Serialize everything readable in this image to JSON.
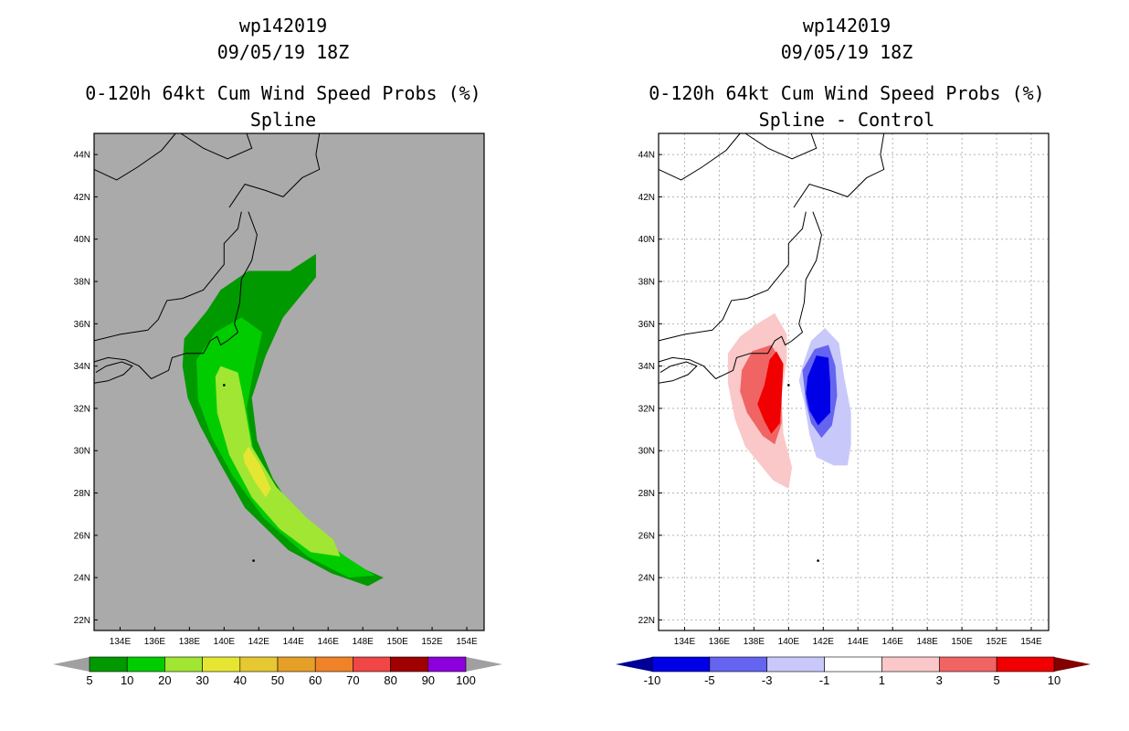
{
  "chart_data": [
    {
      "type": "heatmap",
      "title_lines": [
        "wp142019",
        "09/05/19 18Z",
        "0-120h 64kt Cum Wind Speed Probs (%)",
        "Spline"
      ],
      "xlabel": "",
      "ylabel": "",
      "xlim": [
        132.5,
        155
      ],
      "ylim": [
        21.5,
        45
      ],
      "x_ticks": [
        "134E",
        "136E",
        "138E",
        "140E",
        "142E",
        "144E",
        "146E",
        "148E",
        "150E",
        "152E",
        "154E"
      ],
      "y_ticks": [
        "22N",
        "24N",
        "26N",
        "28N",
        "30N",
        "32N",
        "34N",
        "36N",
        "38N",
        "40N",
        "42N",
        "44N"
      ],
      "grid": false,
      "background": "#aaaaaa",
      "colorbar": {
        "labels": [
          "5",
          "10",
          "20",
          "30",
          "40",
          "50",
          "60",
          "70",
          "80",
          "90",
          "100"
        ],
        "colors": [
          "#009900",
          "#00cc00",
          "#a0e632",
          "#e6e632",
          "#e6c832",
          "#e6a028",
          "#f08228",
          "#f04646",
          "#a00000",
          "#8c00dc"
        ],
        "below": "#a0a0a0",
        "above": "#a0a0a0"
      },
      "contours": [
        {
          "level": "5-10",
          "color": "#009900",
          "lonlat": [
            [
              137.6,
              34
            ],
            [
              137.7,
              35.3
            ],
            [
              139,
              36.6
            ],
            [
              139.8,
              37.6
            ],
            [
              141.4,
              38.5
            ],
            [
              143.8,
              38.5
            ],
            [
              145.3,
              39.3
            ],
            [
              145.3,
              38.2
            ],
            [
              144.8,
              37.7
            ],
            [
              143.4,
              36.3
            ],
            [
              142.4,
              34.5
            ],
            [
              141.6,
              32.5
            ],
            [
              141.9,
              30.5
            ],
            [
              142.8,
              28.7
            ],
            [
              144.3,
              26.8
            ],
            [
              146.4,
              25.3
            ],
            [
              148.1,
              24.4
            ],
            [
              149.2,
              24
            ],
            [
              148.3,
              23.6
            ],
            [
              146.2,
              24.2
            ],
            [
              143.7,
              25.3
            ],
            [
              141.2,
              27.3
            ],
            [
              139.7,
              29.5
            ],
            [
              138.6,
              31.2
            ],
            [
              137.9,
              32.5
            ]
          ]
        },
        {
          "level": "10-20",
          "color": "#00cc00",
          "lonlat": [
            [
              138.4,
              34.3
            ],
            [
              139.5,
              35.6
            ],
            [
              141,
              36.3
            ],
            [
              142.2,
              35.6
            ],
            [
              141.7,
              33.8
            ],
            [
              141.3,
              32
            ],
            [
              141.7,
              30
            ],
            [
              143,
              28
            ],
            [
              145,
              26.2
            ],
            [
              147,
              25
            ],
            [
              148.7,
              24.1
            ],
            [
              147.2,
              24
            ],
            [
              144.8,
              25
            ],
            [
              142.3,
              26.8
            ],
            [
              140.5,
              28.8
            ],
            [
              139.3,
              30.6
            ],
            [
              138.5,
              32.4
            ]
          ]
        },
        {
          "level": "20-30",
          "color": "#a0e632",
          "lonlat": [
            [
              139.5,
              33.5
            ],
            [
              139.8,
              34
            ],
            [
              140.8,
              33.7
            ],
            [
              141.1,
              32.5
            ],
            [
              141.6,
              30.2
            ],
            [
              143,
              28.3
            ],
            [
              144.8,
              26.8
            ],
            [
              146.3,
              25.8
            ],
            [
              146.7,
              25
            ],
            [
              145,
              25.2
            ],
            [
              143.2,
              26.3
            ],
            [
              141.6,
              27.8
            ],
            [
              140.3,
              29.8
            ],
            [
              139.6,
              31.8
            ]
          ]
        },
        {
          "level": "30-40",
          "color": "#e6e632",
          "lonlat": [
            [
              141.1,
              29.8
            ],
            [
              141.4,
              30.2
            ],
            [
              142.1,
              29.3
            ],
            [
              142.7,
              28.2
            ],
            [
              142.4,
              27.8
            ],
            [
              141.8,
              28.5
            ],
            [
              141.2,
              29.4
            ]
          ]
        }
      ]
    },
    {
      "type": "heatmap",
      "title_lines": [
        "wp142019",
        "09/05/19 18Z",
        "0-120h 64kt Cum Wind Speed Probs (%)",
        "Spline - Control"
      ],
      "xlabel": "",
      "ylabel": "",
      "xlim": [
        132.5,
        155
      ],
      "ylim": [
        21.5,
        45
      ],
      "x_ticks": [
        "134E",
        "136E",
        "138E",
        "140E",
        "142E",
        "144E",
        "146E",
        "148E",
        "150E",
        "152E",
        "154E"
      ],
      "y_ticks": [
        "22N",
        "24N",
        "26N",
        "28N",
        "30N",
        "32N",
        "34N",
        "36N",
        "38N",
        "40N",
        "42N",
        "44N"
      ],
      "grid": true,
      "background": "#ffffff",
      "colorbar": {
        "labels": [
          "-10",
          "-5",
          "-3",
          "-1",
          "1",
          "3",
          "5",
          "10"
        ],
        "colors": [
          "#0000e6",
          "#6464f0",
          "#c8c8fa",
          "#ffffff",
          "#fac8c8",
          "#f06464",
          "#f00000"
        ],
        "below": "#000096",
        "above": "#820000"
      },
      "contours": [
        {
          "level": "1-3",
          "color": "#fac8c8",
          "lonlat": [
            [
              136.5,
              34.6
            ],
            [
              137.2,
              35.4
            ],
            [
              138.2,
              36
            ],
            [
              139.2,
              36.5
            ],
            [
              139.9,
              35.5
            ],
            [
              139.9,
              34.3
            ],
            [
              139.6,
              32.6
            ],
            [
              139.7,
              30.8
            ],
            [
              140.2,
              29.2
            ],
            [
              140,
              28.2
            ],
            [
              139.1,
              28.6
            ],
            [
              137.5,
              30.2
            ],
            [
              136.9,
              31.5
            ],
            [
              136.5,
              33.2
            ]
          ]
        },
        {
          "level": "3-5",
          "color": "#f06464",
          "lonlat": [
            [
              137.3,
              33.8
            ],
            [
              137.9,
              34.7
            ],
            [
              139,
              35
            ],
            [
              139.6,
              34.2
            ],
            [
              139.6,
              32.5
            ],
            [
              139.6,
              31.3
            ],
            [
              139.2,
              30.3
            ],
            [
              138.5,
              30.7
            ],
            [
              137.6,
              31.8
            ],
            [
              137.2,
              32.8
            ]
          ]
        },
        {
          "level": "5-10",
          "color": "#f00000",
          "lonlat": [
            [
              138.6,
              33.1
            ],
            [
              138.9,
              34.3
            ],
            [
              139.3,
              34.7
            ],
            [
              139.7,
              34.1
            ],
            [
              139.6,
              32.5
            ],
            [
              139.5,
              31.3
            ],
            [
              139,
              30.8
            ],
            [
              138.6,
              31.4
            ],
            [
              138.2,
              32.2
            ]
          ]
        },
        {
          "level": "1-3 blue",
          "color": "#c8c8fa",
          "lonlat": [
            [
              140.8,
              34
            ],
            [
              141.3,
              35.2
            ],
            [
              142.1,
              35.8
            ],
            [
              142.9,
              35.1
            ],
            [
              143.2,
              33.5
            ],
            [
              143.6,
              31.8
            ],
            [
              143.6,
              30.3
            ],
            [
              143.4,
              29.3
            ],
            [
              142.6,
              29.3
            ],
            [
              141.6,
              29.7
            ],
            [
              141.2,
              30.8
            ],
            [
              140.9,
              32.3
            ],
            [
              140.6,
              33.3
            ]
          ]
        },
        {
          "level": "-3--5",
          "color": "#6464f0",
          "lonlat": [
            [
              140.8,
              33.8
            ],
            [
              141.5,
              34.8
            ],
            [
              142.3,
              35
            ],
            [
              142.7,
              34
            ],
            [
              142.8,
              32.6
            ],
            [
              142.5,
              31.2
            ],
            [
              141.9,
              30.6
            ],
            [
              141.3,
              31.3
            ],
            [
              141,
              32.3
            ]
          ]
        },
        {
          "level": "-5--10",
          "color": "#0000e6",
          "lonlat": [
            [
              141.1,
              33.5
            ],
            [
              141.6,
              34.5
            ],
            [
              142.3,
              34.4
            ],
            [
              142.4,
              33.2
            ],
            [
              142.4,
              31.8
            ],
            [
              141.7,
              31.2
            ],
            [
              141.2,
              31.9
            ],
            [
              141,
              32.7
            ]
          ]
        }
      ]
    }
  ]
}
